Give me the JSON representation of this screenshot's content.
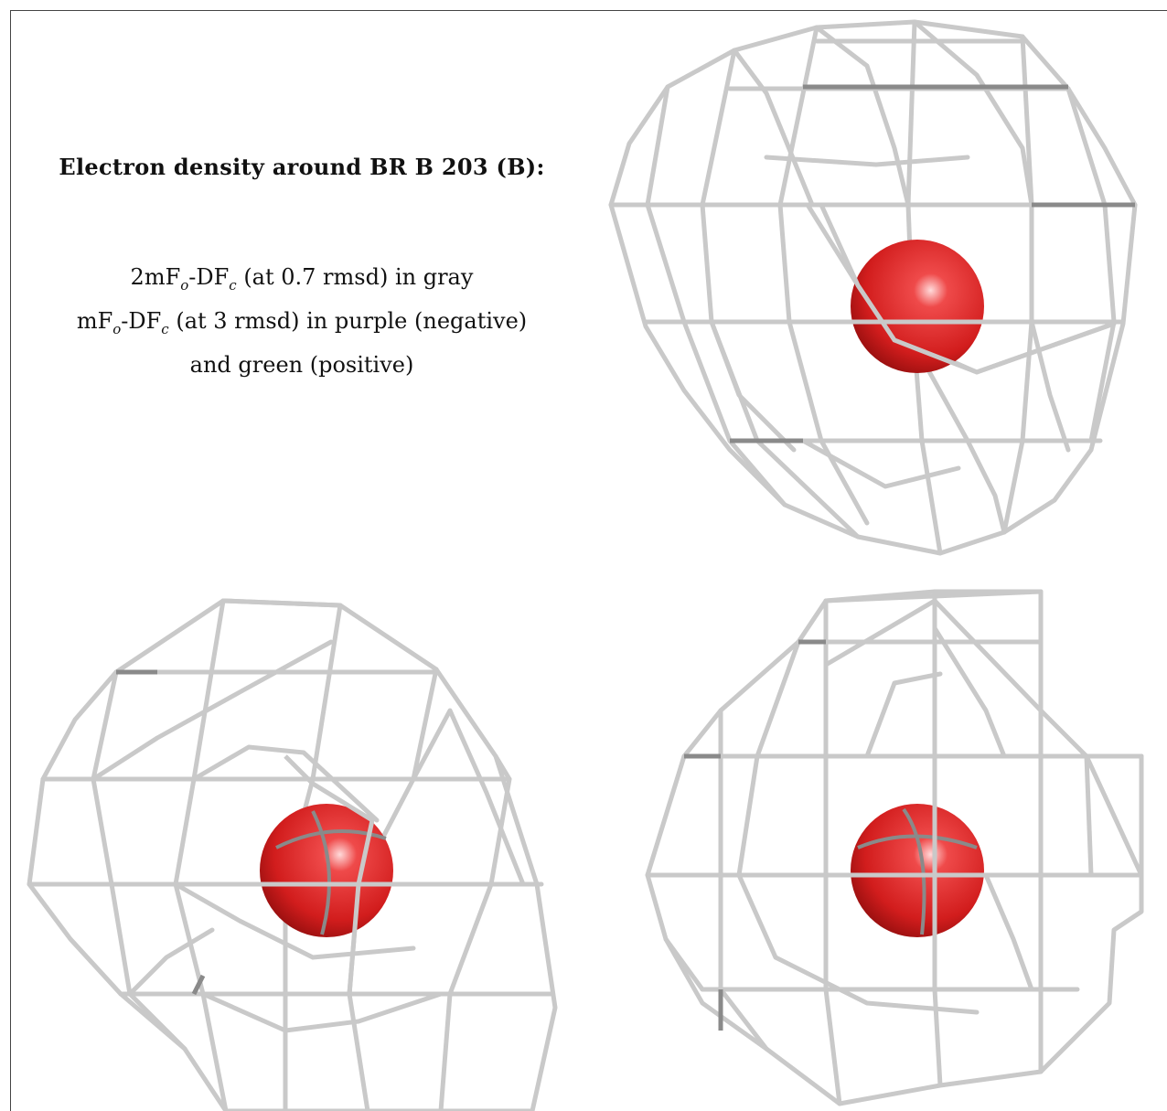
{
  "caption": {
    "title": "Electron density around BR B 203 (B):",
    "line1_prefix": "2mF",
    "line1_sub1": "o",
    "line1_mid": "-DF",
    "line1_sub2": "c",
    "line1_suffix": " (at 0.7 rmsd) in gray",
    "line2_prefix": "mF",
    "line2_sub1": "o",
    "line2_mid": "-DF",
    "line2_sub2": "c",
    "line2_suffix": " (at 3 rmsd) in purple (negative)",
    "line3": "and green (positive)"
  },
  "colors": {
    "mesh": "#c9c9c9",
    "mesh_dark": "#8a8a8a",
    "atom": "#d81e1e",
    "border": "#444444"
  }
}
